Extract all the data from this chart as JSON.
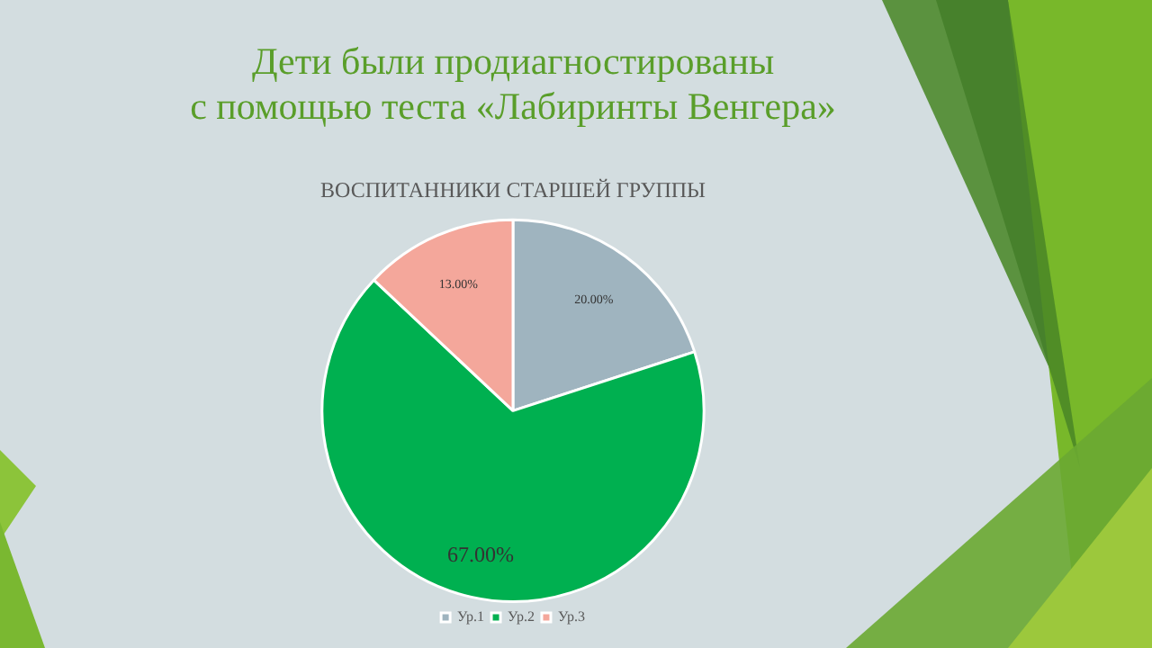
{
  "chart_data": {
    "type": "pie",
    "title": "Дети были продиагностированы\nс помощью теста «Лабиринты Венгера»",
    "subtitle": "ВОСПИТАННИКИ СТАРШЕЙ ГРУППЫ",
    "categories": [
      "Ур.1",
      "Ур.2",
      "Ур.3"
    ],
    "values": [
      20,
      67,
      13
    ],
    "colors": [
      "#9fb4bf",
      "#00b050",
      "#f4a79b"
    ],
    "value_labels": [
      "20.00%",
      "67.00%",
      "13.00%"
    ],
    "legend": "bottom"
  }
}
